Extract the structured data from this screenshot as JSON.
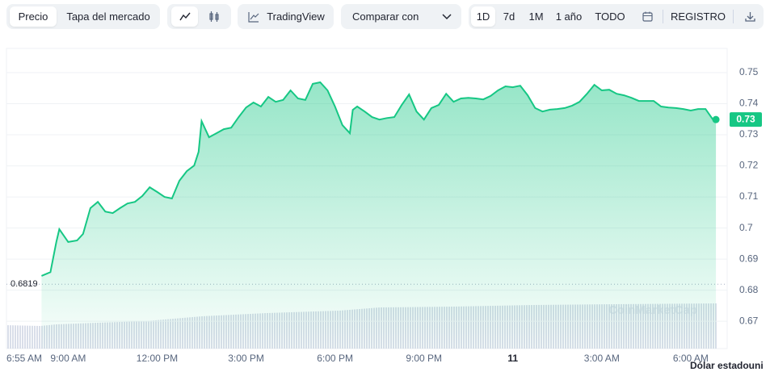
{
  "toolbar": {
    "price_tab": "Precio",
    "market_cap_tab": "Tapa del mercado",
    "tradingview": "TradingView",
    "compare": "Comparar con",
    "ranges": [
      "1D",
      "7d",
      "1M",
      "1 año",
      "TODO"
    ],
    "log": "REGISTRO"
  },
  "chart_data": {
    "type": "area",
    "color": "#16c784",
    "x": [
      8.1,
      8.4,
      8.6,
      8.7,
      9.0,
      9.3,
      9.5,
      9.75,
      10.0,
      10.25,
      10.5,
      10.75,
      11.0,
      11.25,
      11.5,
      11.75,
      12.0,
      12.25,
      12.5,
      12.75,
      13.0,
      13.25,
      13.4,
      13.5,
      13.75,
      14.0,
      14.25,
      14.5,
      14.75,
      15.0,
      15.25,
      15.5,
      15.75,
      16.0,
      16.25,
      16.5,
      16.75,
      17.0,
      17.25,
      17.5,
      17.75,
      18.0,
      18.25,
      18.5,
      18.6,
      18.75,
      19.0,
      19.25,
      19.5,
      19.75,
      20.0,
      20.25,
      20.5,
      20.75,
      21.0,
      21.25,
      21.5,
      21.75,
      22.0,
      22.25,
      22.5,
      22.75,
      23.0,
      23.25,
      23.5,
      23.75,
      24.0,
      24.25,
      24.5,
      24.75,
      25.0,
      25.25,
      25.5,
      25.75,
      26.0,
      26.25,
      26.5,
      26.75,
      27.0,
      27.25,
      27.5,
      27.75,
      28.0,
      28.25,
      28.5,
      28.75,
      29.0,
      29.25,
      29.5,
      29.75,
      30.0,
      30.25,
      30.5,
      30.75,
      30.85
    ],
    "values": [
      0.6846,
      0.6858,
      0.6955,
      0.6996,
      0.6955,
      0.696,
      0.6981,
      0.7064,
      0.7084,
      0.7053,
      0.7048,
      0.7064,
      0.7079,
      0.7084,
      0.7103,
      0.7131,
      0.7116,
      0.71,
      0.7095,
      0.7152,
      0.7183,
      0.7201,
      0.7245,
      0.7344,
      0.7292,
      0.7305,
      0.7318,
      0.7323,
      0.7357,
      0.7388,
      0.7404,
      0.7391,
      0.7422,
      0.7406,
      0.7412,
      0.7443,
      0.7417,
      0.7412,
      0.7464,
      0.7469,
      0.7443,
      0.7391,
      0.7331,
      0.7305,
      0.738,
      0.7391,
      0.7375,
      0.7357,
      0.7349,
      0.7354,
      0.7357,
      0.7396,
      0.743,
      0.7375,
      0.7349,
      0.7386,
      0.7396,
      0.7432,
      0.7406,
      0.7417,
      0.7419,
      0.7417,
      0.7414,
      0.7425,
      0.7443,
      0.7456,
      0.7453,
      0.7458,
      0.7427,
      0.7386,
      0.7375,
      0.7381,
      0.7383,
      0.7386,
      0.7394,
      0.7406,
      0.7432,
      0.7461,
      0.7443,
      0.7445,
      0.7432,
      0.7427,
      0.7419,
      0.7409,
      0.7409,
      0.7409,
      0.7391,
      0.7388,
      0.7386,
      0.7383,
      0.7378,
      0.7383,
      0.7383,
      0.7349,
      0.7349
    ],
    "xlim": [
      6.917,
      31.23
    ],
    "xticks": [
      {
        "value": 6.917,
        "label": "6:55 AM"
      },
      {
        "value": 9,
        "label": "9:00 AM"
      },
      {
        "value": 12,
        "label": "12:00 PM"
      },
      {
        "value": 15,
        "label": "3:00 PM"
      },
      {
        "value": 18,
        "label": "6:00 PM"
      },
      {
        "value": 21,
        "label": "9:00 PM"
      },
      {
        "value": 24,
        "label": "11"
      },
      {
        "value": 27,
        "label": "3:00 AM"
      },
      {
        "value": 30,
        "label": "6:00 AM"
      }
    ],
    "ylim": [
      0.6612,
      0.7578
    ],
    "yticks": [
      0.67,
      0.68,
      0.69,
      0.7,
      0.71,
      0.72,
      0.73,
      0.74,
      0.75
    ],
    "grid": true,
    "baseline": 0.6819,
    "current_label": "0.73",
    "watermark": "CoinMarketCap",
    "currency_label": "Dólar estadouni"
  }
}
